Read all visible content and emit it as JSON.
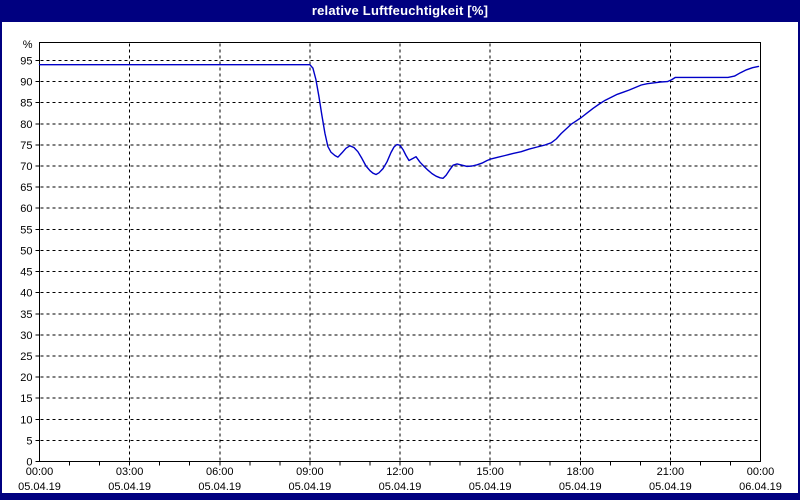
{
  "window": {
    "title": "relative Luftfeuchtigkeit [%]",
    "chrome_color": "#000080",
    "titlebar_text_color": "#ffffff",
    "client_background": "#ffffff"
  },
  "chart_data": {
    "type": "line",
    "title": "relative Luftfeuchtigkeit [%]",
    "ylabel": "%",
    "ylim": [
      0,
      99.4
    ],
    "xlim_minutes": [
      0,
      1440
    ],
    "grid": "dashed-black",
    "line_color": "#0000c8",
    "axis_color": "#000000",
    "y_axis": {
      "unit_label": "%",
      "tick_min": 0,
      "tick_max": 95,
      "tick_step": 5
    },
    "x_axis": {
      "major_tick_hours": 3,
      "minor_tick_hours": 1,
      "ticks": [
        {
          "time": "00:00",
          "date": "05.04.19"
        },
        {
          "time": "03:00",
          "date": "05.04.19"
        },
        {
          "time": "06:00",
          "date": "05.04.19"
        },
        {
          "time": "09:00",
          "date": "05.04.19"
        },
        {
          "time": "12:00",
          "date": "05.04.19"
        },
        {
          "time": "15:00",
          "date": "05.04.19"
        },
        {
          "time": "18:00",
          "date": "05.04.19"
        },
        {
          "time": "21:00",
          "date": "05.04.19"
        },
        {
          "time": "00:00",
          "date": "06.04.19"
        }
      ]
    },
    "series": [
      {
        "name": "relative Luftfeuchtigkeit",
        "unit": "%",
        "points_minutes_value": [
          [
            0,
            94
          ],
          [
            120,
            94
          ],
          [
            240,
            94
          ],
          [
            360,
            94
          ],
          [
            480,
            94
          ],
          [
            540,
            94
          ],
          [
            546,
            93.2
          ],
          [
            552,
            90.5
          ],
          [
            558,
            86.5
          ],
          [
            564,
            82
          ],
          [
            570,
            77.8
          ],
          [
            576,
            74.6
          ],
          [
            582,
            73.3
          ],
          [
            590,
            72.5
          ],
          [
            596,
            72.1
          ],
          [
            604,
            73.1
          ],
          [
            612,
            74.2
          ],
          [
            620,
            74.8
          ],
          [
            628,
            74.4
          ],
          [
            636,
            73.4
          ],
          [
            644,
            71.8
          ],
          [
            652,
            70.0
          ],
          [
            660,
            68.9
          ],
          [
            666,
            68.3
          ],
          [
            672,
            68.0
          ],
          [
            678,
            68.4
          ],
          [
            686,
            69.4
          ],
          [
            694,
            71.0
          ],
          [
            702,
            73.2
          ],
          [
            708,
            74.5
          ],
          [
            714,
            75.1
          ],
          [
            720,
            74.9
          ],
          [
            726,
            73.9
          ],
          [
            732,
            72.5
          ],
          [
            738,
            71.3
          ],
          [
            746,
            71.8
          ],
          [
            752,
            72.2
          ],
          [
            760,
            70.9
          ],
          [
            768,
            69.9
          ],
          [
            776,
            69.0
          ],
          [
            784,
            68.2
          ],
          [
            792,
            67.6
          ],
          [
            800,
            67.2
          ],
          [
            806,
            67.1
          ],
          [
            812,
            67.8
          ],
          [
            818,
            68.9
          ],
          [
            826,
            70.2
          ],
          [
            834,
            70.5
          ],
          [
            844,
            70.2
          ],
          [
            854,
            69.9
          ],
          [
            864,
            70.0
          ],
          [
            874,
            70.3
          ],
          [
            884,
            70.7
          ],
          [
            894,
            71.3
          ],
          [
            902,
            71.7
          ],
          [
            916,
            72.1
          ],
          [
            930,
            72.5
          ],
          [
            946,
            73.0
          ],
          [
            962,
            73.4
          ],
          [
            978,
            74.0
          ],
          [
            994,
            74.5
          ],
          [
            1010,
            75.0
          ],
          [
            1022,
            75.5
          ],
          [
            1032,
            76.4
          ],
          [
            1042,
            77.7
          ],
          [
            1052,
            78.8
          ],
          [
            1062,
            79.9
          ],
          [
            1072,
            80.7
          ],
          [
            1082,
            81.5
          ],
          [
            1094,
            82.6
          ],
          [
            1106,
            83.7
          ],
          [
            1118,
            84.7
          ],
          [
            1130,
            85.6
          ],
          [
            1142,
            86.3
          ],
          [
            1154,
            87.0
          ],
          [
            1166,
            87.5
          ],
          [
            1178,
            88.0
          ],
          [
            1190,
            88.6
          ],
          [
            1202,
            89.2
          ],
          [
            1214,
            89.5
          ],
          [
            1226,
            89.7
          ],
          [
            1240,
            89.9
          ],
          [
            1254,
            90.0
          ],
          [
            1262,
            90.4
          ],
          [
            1270,
            91.0
          ],
          [
            1300,
            91.0
          ],
          [
            1340,
            91.0
          ],
          [
            1375,
            91.0
          ],
          [
            1388,
            91.3
          ],
          [
            1400,
            92.1
          ],
          [
            1412,
            92.8
          ],
          [
            1424,
            93.3
          ],
          [
            1436,
            93.6
          ]
        ]
      }
    ]
  }
}
